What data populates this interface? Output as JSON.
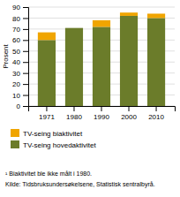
{
  "chart_data": {
    "type": "bar",
    "stacked": true,
    "categories": [
      "1971",
      "1980",
      "1990",
      "2000",
      "2010"
    ],
    "series": [
      {
        "name": "TV-seing hovedaktivitet",
        "color": "#6b7c2a",
        "values": [
          60,
          71,
          72,
          82,
          80
        ]
      },
      {
        "name": "TV-seing biaktivitet",
        "color": "#f0a500",
        "values": [
          7,
          0,
          6,
          3,
          4
        ]
      }
    ],
    "y_label": "Prosent",
    "ylim": [
      0,
      90
    ],
    "yticks": [
      0,
      10,
      20,
      30,
      40,
      50,
      60,
      70,
      80,
      90
    ],
    "grid": true,
    "legend": "bottom",
    "annotations": [
      "¹ Biaktivitet ble ikke målt i 1980.",
      "Kilde: Tidsbruksundersøkelsene, Statistisk sentralbyrå."
    ]
  }
}
